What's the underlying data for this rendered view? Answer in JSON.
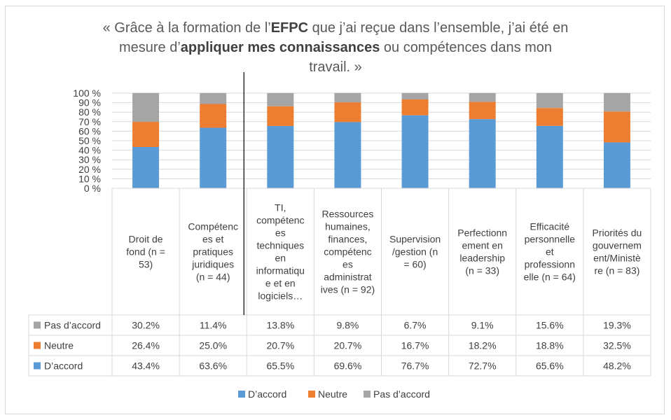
{
  "title": {
    "line1_a": "« Grâce à la formation de l’",
    "line1_b": "EFPC",
    "line1_c": " que j’ai reçue dans l’ensemble, j’ai été en",
    "line2_a": "mesure d’",
    "line2_b": "appliquer mes connaissances",
    "line2_c": " ou compétences dans mon",
    "line3": "travail. »"
  },
  "colors": {
    "d_accord": "#5b9bd5",
    "neutre": "#ed7d31",
    "pas_d_accord": "#a5a5a5",
    "grid": "#d9d9d9",
    "text": "#404040"
  },
  "chart_data": {
    "type": "bar",
    "stacked": true,
    "percent": true,
    "ylim": [
      0,
      100
    ],
    "yticks": [
      "0 %",
      "10 %",
      "20 %",
      "30 %",
      "40 %",
      "50 %",
      "60 %",
      "70 %",
      "80 %",
      "90 %",
      "100 %"
    ],
    "categories": [
      [
        "Droit de",
        "fond (n =",
        "53)"
      ],
      [
        "Compétenc",
        "es et",
        "pratiques",
        "juridiques",
        "(n = 44)"
      ],
      [
        "TI,",
        "compétenc",
        "es",
        "techniques",
        "en",
        "informatiqu",
        "e et en",
        "logiciels…"
      ],
      [
        "Ressources",
        "humaines,",
        "finances,",
        "compétenc",
        "es",
        "administrat",
        "ives (n = 92)"
      ],
      [
        "Supervision",
        "/gestion (n",
        "= 60)"
      ],
      [
        "Perfectionn",
        "ement en",
        "leadership",
        "(n = 33)"
      ],
      [
        "Efficacité",
        "personnelle",
        "et",
        "professionn",
        "elle (n = 64)"
      ],
      [
        "Priorités du",
        "gouvernem",
        "ent/Ministè",
        "re (n = 83)"
      ]
    ],
    "series": [
      {
        "name": "D’accord",
        "values": [
          43.4,
          63.6,
          65.5,
          69.6,
          76.7,
          72.7,
          65.6,
          48.2
        ],
        "labels": [
          "43.4%",
          "63.6%",
          "65.5%",
          "69.6%",
          "76.7%",
          "72.7%",
          "65.6%",
          "48.2%"
        ]
      },
      {
        "name": "Neutre",
        "values": [
          26.4,
          25.0,
          20.7,
          20.7,
          16.7,
          18.2,
          18.8,
          32.5
        ],
        "labels": [
          "26.4%",
          "25.0%",
          "20.7%",
          "20.7%",
          "16.7%",
          "18.2%",
          "18.8%",
          "32.5%"
        ]
      },
      {
        "name": "Pas d’accord",
        "values": [
          30.2,
          11.4,
          13.8,
          9.8,
          6.7,
          9.1,
          15.6,
          19.3
        ],
        "labels": [
          "30.2%",
          "11.4%",
          "13.8%",
          "9.8%",
          "6.7%",
          "9.1%",
          "15.6%",
          "19.3%"
        ]
      }
    ],
    "table_rows_order": [
      "Pas d’accord",
      "Neutre",
      "D’accord"
    ],
    "legend": [
      "D’accord",
      "Neutre",
      "Pas d’accord"
    ],
    "legend_position": "bottom",
    "grid": true
  }
}
